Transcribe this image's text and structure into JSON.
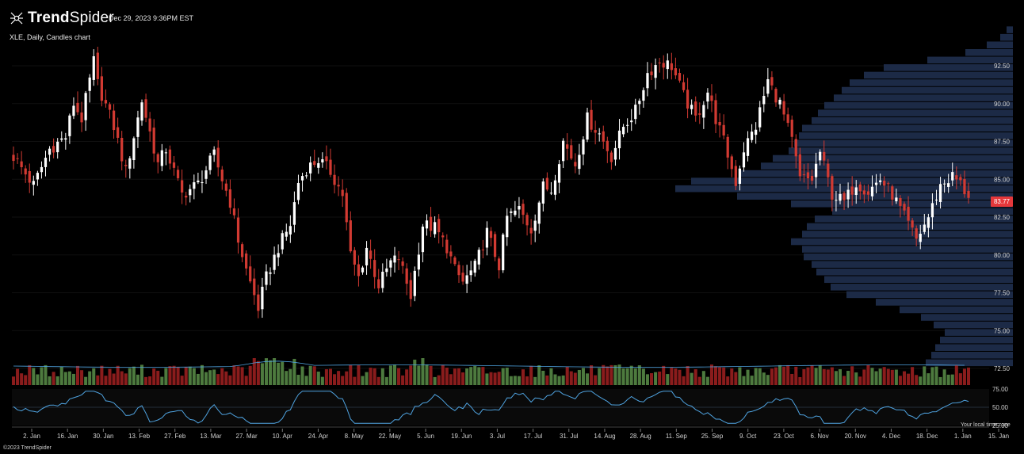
{
  "header": {
    "brand_bold": "Trend",
    "brand_light": "Spider",
    "timestamp": "Dec 29, 2023 9:36PM EST",
    "chart_title": "XLE, Daily, Candles chart"
  },
  "footer": {
    "copyright": "©2023 TrendSpider",
    "tz_note": "Your local time zone"
  },
  "colors": {
    "up": "#ffffff",
    "down": "#d23a32",
    "vol_up": "#4d7a3e",
    "vol_down": "#8a1c1c",
    "profile": "#1c2a46",
    "osc_line": "#4fa3e0",
    "vol_ma": "#4fa3e0",
    "last_price": "#e5383b"
  },
  "chart_data": [
    {
      "type": "candlestick",
      "symbol": "XLE",
      "interval": "Daily",
      "last_price": 83.77,
      "last_price_label": "83.77",
      "x_labels": [
        "2. Jan",
        "16. Jan",
        "30. Jan",
        "13. Feb",
        "27. Feb",
        "13. Mar",
        "27. Mar",
        "10. Apr",
        "24. Apr",
        "8. May",
        "22. May",
        "5. Jun",
        "19. Jun",
        "3. Jul",
        "17. Jul",
        "31. Jul",
        "14. Aug",
        "28. Aug",
        "11. Sep",
        "25. Sep",
        "9. Oct",
        "23. Oct",
        "6. Nov",
        "20. Nov",
        "4. Dec",
        "18. Dec",
        "1. Jan",
        "15. Jan"
      ],
      "y_ticks": [
        92.5,
        90.0,
        87.5,
        85.0,
        82.5,
        80.0,
        77.5,
        75.0,
        72.5
      ],
      "y_tick_labels": [
        "92.50",
        "90.00",
        "87.50",
        "85.00",
        "82.50",
        "80.00",
        "77.50",
        "75.00",
        "72.50"
      ],
      "ylim": [
        71.6,
        95.5
      ],
      "price_path": [
        [
          0,
          86.5
        ],
        [
          5,
          84.6
        ],
        [
          9,
          87.0
        ],
        [
          13,
          87.8
        ],
        [
          15,
          90.0
        ],
        [
          17,
          89.0
        ],
        [
          20,
          92.8
        ],
        [
          21,
          91.3
        ],
        [
          25,
          88.5
        ],
        [
          28,
          85.5
        ],
        [
          32,
          90.2
        ],
        [
          36,
          86.0
        ],
        [
          38,
          87.0
        ],
        [
          42,
          84.0
        ],
        [
          46,
          84.7
        ],
        [
          50,
          86.6
        ],
        [
          52,
          85.0
        ],
        [
          54,
          83.5
        ],
        [
          56,
          81.0
        ],
        [
          58,
          79.0
        ],
        [
          61,
          76.5
        ],
        [
          63,
          78.5
        ],
        [
          66,
          80.5
        ],
        [
          69,
          82.0
        ],
        [
          71,
          84.8
        ],
        [
          73,
          85.7
        ],
        [
          76,
          86.3
        ],
        [
          79,
          85.5
        ],
        [
          82,
          84.0
        ],
        [
          84,
          80.0
        ],
        [
          86,
          78.5
        ],
        [
          88,
          80.5
        ],
        [
          91,
          78.0
        ],
        [
          94,
          79.5
        ],
        [
          96,
          79.8
        ],
        [
          99,
          77.3
        ],
        [
          102,
          82.0
        ],
        [
          105,
          81.8
        ],
        [
          108,
          80.5
        ],
        [
          110,
          79.0
        ],
        [
          112,
          78.2
        ],
        [
          115,
          79.2
        ],
        [
          118,
          81.5
        ],
        [
          121,
          79.3
        ],
        [
          123,
          82.5
        ],
        [
          126,
          83.0
        ],
        [
          129,
          81.7
        ],
        [
          132,
          84.5
        ],
        [
          134,
          84.3
        ],
        [
          137,
          87.5
        ],
        [
          140,
          86.0
        ],
        [
          143,
          89.0
        ],
        [
          146,
          88.0
        ],
        [
          149,
          86.5
        ],
        [
          152,
          88.5
        ],
        [
          155,
          89.5
        ],
        [
          158,
          92.0
        ],
        [
          161,
          92.8
        ],
        [
          164,
          92.5
        ],
        [
          167,
          90.5
        ],
        [
          170,
          89.0
        ],
        [
          173,
          90.8
        ],
        [
          175,
          89.0
        ],
        [
          177,
          87.5
        ],
        [
          180,
          84.8
        ],
        [
          182,
          87.0
        ],
        [
          185,
          88.5
        ],
        [
          188,
          91.5
        ],
        [
          191,
          90.0
        ],
        [
          194,
          87.5
        ],
        [
          196,
          85.0
        ],
        [
          199,
          85.0
        ],
        [
          201,
          86.8
        ],
        [
          204,
          84.0
        ],
        [
          207,
          83.5
        ],
        [
          210,
          84.8
        ],
        [
          213,
          84.2
        ],
        [
          216,
          85.0
        ],
        [
          219,
          84.0
        ],
        [
          222,
          82.5
        ],
        [
          225,
          81.0
        ],
        [
          228,
          82.5
        ],
        [
          231,
          84.6
        ],
        [
          234,
          85.2
        ],
        [
          236,
          84.7
        ],
        [
          238,
          83.77
        ]
      ],
      "volume_profile": [
        [
          94.85,
          1270
        ],
        [
          94.35,
          1262
        ],
        [
          93.85,
          1245
        ],
        [
          93.35,
          1218
        ],
        [
          92.85,
          1170
        ],
        [
          92.35,
          1115
        ],
        [
          91.85,
          1090
        ],
        [
          91.35,
          1072
        ],
        [
          90.85,
          1062
        ],
        [
          90.35,
          1052
        ],
        [
          89.85,
          1040
        ],
        [
          89.35,
          1032
        ],
        [
          88.85,
          1024
        ],
        [
          88.35,
          1012
        ],
        [
          87.85,
          1008
        ],
        [
          87.35,
          1002
        ],
        [
          86.85,
          995
        ],
        [
          86.35,
          975
        ],
        [
          85.85,
          960
        ],
        [
          85.35,
          935
        ],
        [
          84.85,
          872
        ],
        [
          84.35,
          852
        ],
        [
          83.85,
          930
        ],
        [
          83.35,
          998
        ],
        [
          82.85,
          1050
        ],
        [
          82.35,
          1028
        ],
        [
          81.85,
          1018
        ],
        [
          81.35,
          1012
        ],
        [
          80.85,
          998
        ],
        [
          80.35,
          1012
        ],
        [
          79.85,
          1014
        ],
        [
          79.35,
          1024
        ],
        [
          78.85,
          1030
        ],
        [
          78.35,
          1040
        ],
        [
          77.85,
          1048
        ],
        [
          77.35,
          1068
        ],
        [
          76.85,
          1105
        ],
        [
          76.35,
          1135
        ],
        [
          75.85,
          1162
        ],
        [
          75.35,
          1178
        ],
        [
          74.85,
          1192
        ],
        [
          74.35,
          1186
        ],
        [
          73.85,
          1180
        ],
        [
          73.35,
          1175
        ],
        [
          72.85,
          1168
        ]
      ]
    },
    {
      "type": "volume_bar",
      "colors_by_candle": true
    },
    {
      "type": "line",
      "name": "oscillator",
      "y_ticks": [
        75.0,
        50.0,
        25.0
      ],
      "y_tick_labels": [
        "75.00",
        "50.00",
        "25.00"
      ],
      "ylim": [
        25,
        75
      ]
    }
  ]
}
